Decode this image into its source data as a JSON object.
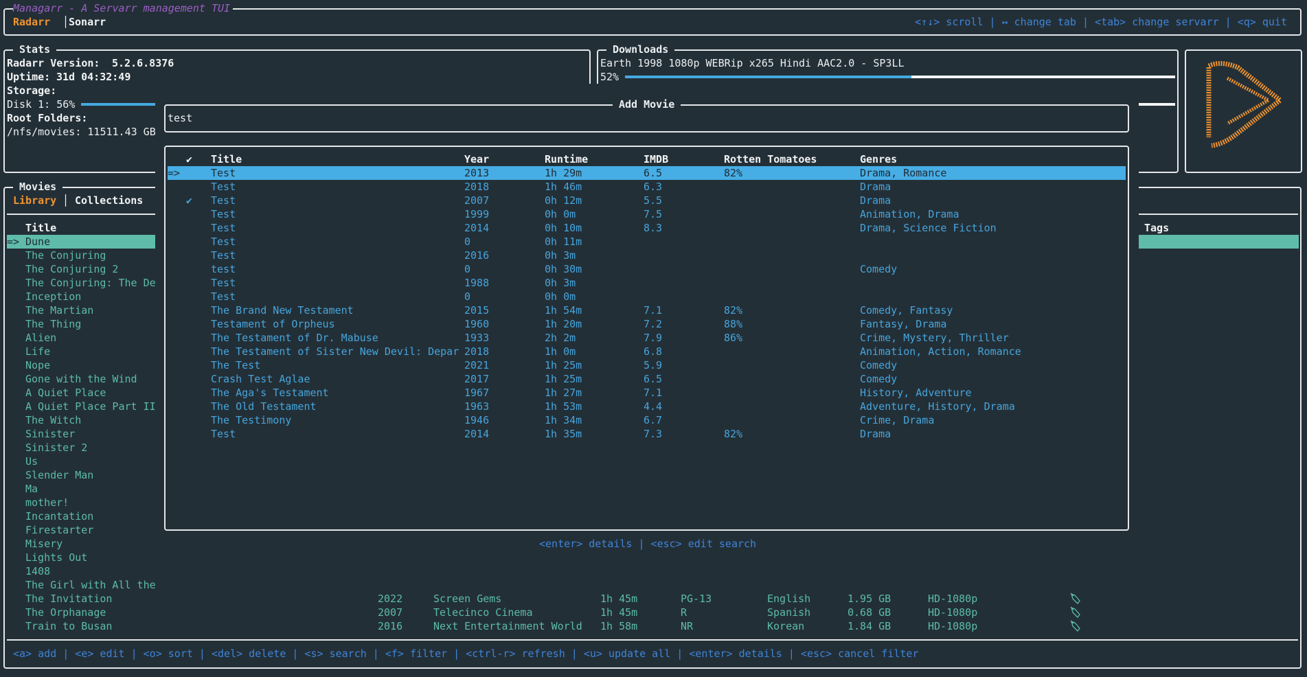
{
  "app": {
    "title": "Managarr - A Servarr management TUI",
    "tabs": [
      "Radarr",
      "Sonarr"
    ],
    "active_tab": "Radarr",
    "separator": "│",
    "help": "<↑↓> scroll | ↔ change tab | <tab> change servarr | <q> quit"
  },
  "stats": {
    "title": "Stats",
    "version_label": "Radarr Version:",
    "version": "5.2.6.8376",
    "uptime_label": "Uptime:",
    "uptime": "31d 04:32:49",
    "storage_label": "Storage:",
    "disk_label": "Disk 1: 56%",
    "disk_percent": 56,
    "root_label": "Root Folders:",
    "root_folder": "/nfs/movies: 11511.43 GB"
  },
  "downloads": {
    "title": "Downloads",
    "items": [
      {
        "name": "Earth 1998 1080p WEBRip x265 Hindi AAC2.0 - SP3LL",
        "progress_label": "52%",
        "progress": 52
      }
    ]
  },
  "logo": {
    "icon": "radarr-logo",
    "color": "#f2942f"
  },
  "movies": {
    "title": "Movies",
    "tabs": [
      "Library",
      "Collections"
    ],
    "active_tab": "Library",
    "columns": {
      "title": "Title",
      "tags": "Tags"
    },
    "selector": "=>",
    "library": [
      {
        "title": "Dune"
      },
      {
        "title": "The Conjuring"
      },
      {
        "title": "The Conjuring 2"
      },
      {
        "title": "The Conjuring: The De"
      },
      {
        "title": "Inception"
      },
      {
        "title": "The Martian"
      },
      {
        "title": "The Thing"
      },
      {
        "title": "Alien"
      },
      {
        "title": "Life"
      },
      {
        "title": "Nope"
      },
      {
        "title": "Gone with the Wind"
      },
      {
        "title": "A Quiet Place"
      },
      {
        "title": "A Quiet Place Part II"
      },
      {
        "title": "The Witch"
      },
      {
        "title": "Sinister"
      },
      {
        "title": "Sinister 2"
      },
      {
        "title": "Us"
      },
      {
        "title": "Slender Man"
      },
      {
        "title": "Ma"
      },
      {
        "title": "mother!"
      },
      {
        "title": "Incantation"
      },
      {
        "title": "Firestarter"
      },
      {
        "title": "Misery"
      },
      {
        "title": "Lights Out"
      },
      {
        "title": "1408"
      },
      {
        "title": "The Girl with All the"
      },
      {
        "title": "The Invitation",
        "year": "2022",
        "studio": "Screen Gems",
        "runtime": "1h 45m",
        "rating": "PG-13",
        "language": "English",
        "size": "1.95 GB",
        "quality": "HD-1080p",
        "tag_icon": "tag-icon"
      },
      {
        "title": "The Orphanage",
        "year": "2007",
        "studio": "Telecinco Cinema",
        "runtime": "1h 45m",
        "rating": "R",
        "language": "Spanish",
        "size": "0.68 GB",
        "quality": "HD-1080p",
        "tag_icon": "tag-icon"
      },
      {
        "title": "Train to Busan",
        "year": "2016",
        "studio": "Next Entertainment World",
        "runtime": "1h 58m",
        "rating": "NR",
        "language": "Korean",
        "size": "1.84 GB",
        "quality": "HD-1080p",
        "tag_icon": "tag-icon"
      }
    ],
    "footer_help": "<a> add | <e> edit | <o> sort | <del> delete | <s> search | <f> filter | <ctrl-r> refresh | <u> update all | <enter> details | <esc> cancel filter"
  },
  "add_movie": {
    "title": "Add Movie",
    "search_value": "test",
    "columns": {
      "check": "✔",
      "title": "Title",
      "year": "Year",
      "runtime": "Runtime",
      "imdb": "IMDB",
      "rt": "Rotten Tomatoes",
      "genres": "Genres"
    },
    "selector": "=>",
    "results": [
      {
        "check": "",
        "title": "Test",
        "year": "2013",
        "runtime": "1h 29m",
        "imdb": "6.5",
        "rt": "82%",
        "genres": "Drama, Romance"
      },
      {
        "check": "",
        "title": "Test",
        "year": "2018",
        "runtime": "1h 46m",
        "imdb": "6.3",
        "rt": "",
        "genres": "Drama"
      },
      {
        "check": "✔",
        "title": "Test",
        "year": "2007",
        "runtime": "0h 12m",
        "imdb": "5.5",
        "rt": "",
        "genres": "Drama"
      },
      {
        "check": "",
        "title": "Test",
        "year": "1999",
        "runtime": "0h 0m",
        "imdb": "7.5",
        "rt": "",
        "genres": "Animation, Drama"
      },
      {
        "check": "",
        "title": "Test",
        "year": "2014",
        "runtime": "0h 10m",
        "imdb": "8.3",
        "rt": "",
        "genres": "Drama, Science Fiction"
      },
      {
        "check": "",
        "title": "Test",
        "year": "0",
        "runtime": "0h 11m",
        "imdb": "",
        "rt": "",
        "genres": ""
      },
      {
        "check": "",
        "title": "Test",
        "year": "2016",
        "runtime": "0h 3m",
        "imdb": "",
        "rt": "",
        "genres": ""
      },
      {
        "check": "",
        "title": "test",
        "year": "0",
        "runtime": "0h 30m",
        "imdb": "",
        "rt": "",
        "genres": "Comedy"
      },
      {
        "check": "",
        "title": "Test",
        "year": "1988",
        "runtime": "0h 3m",
        "imdb": "",
        "rt": "",
        "genres": ""
      },
      {
        "check": "",
        "title": "Test",
        "year": "0",
        "runtime": "0h 0m",
        "imdb": "",
        "rt": "",
        "genres": ""
      },
      {
        "check": "",
        "title": "The Brand New Testament",
        "year": "2015",
        "runtime": "1h 54m",
        "imdb": "7.1",
        "rt": "82%",
        "genres": "Comedy, Fantasy"
      },
      {
        "check": "",
        "title": "Testament of Orpheus",
        "year": "1960",
        "runtime": "1h 20m",
        "imdb": "7.2",
        "rt": "88%",
        "genres": "Fantasy, Drama"
      },
      {
        "check": "",
        "title": "The Testament of Dr. Mabuse",
        "year": "1933",
        "runtime": "2h 2m",
        "imdb": "7.9",
        "rt": "86%",
        "genres": "Crime, Mystery, Thriller"
      },
      {
        "check": "",
        "title": "The Testament of Sister New Devil: Depar",
        "year": "2018",
        "runtime": "1h 0m",
        "imdb": "6.8",
        "rt": "",
        "genres": "Animation, Action, Romance"
      },
      {
        "check": "",
        "title": "The Test",
        "year": "2021",
        "runtime": "1h 25m",
        "imdb": "5.9",
        "rt": "",
        "genres": "Comedy"
      },
      {
        "check": "",
        "title": "Crash Test Aglae",
        "year": "2017",
        "runtime": "1h 25m",
        "imdb": "6.5",
        "rt": "",
        "genres": "Comedy"
      },
      {
        "check": "",
        "title": "The Aga's Testament",
        "year": "1967",
        "runtime": "1h 27m",
        "imdb": "7.1",
        "rt": "",
        "genres": "History, Adventure"
      },
      {
        "check": "",
        "title": "The Old Testament",
        "year": "1963",
        "runtime": "1h 53m",
        "imdb": "4.4",
        "rt": "",
        "genres": "Adventure, History, Drama"
      },
      {
        "check": "",
        "title": "The Testimony",
        "year": "1946",
        "runtime": "1h 34m",
        "imdb": "6.7",
        "rt": "",
        "genres": "Crime, Drama"
      },
      {
        "check": "",
        "title": "Test",
        "year": "2014",
        "runtime": "1h 35m",
        "imdb": "7.3",
        "rt": "82%",
        "genres": "Drama"
      }
    ],
    "help": "<enter> details | <esc> edit search"
  },
  "colors": {
    "background": "#232f37",
    "accent_orange": "#f2942f",
    "title_purple": "#9b5fc4",
    "help_blue": "#3e84d8",
    "table_blue": "#46a5dc",
    "selection_blue": "#47ade5",
    "library_teal": "#5cbca9",
    "gauge_blue": "#45a9e0"
  }
}
